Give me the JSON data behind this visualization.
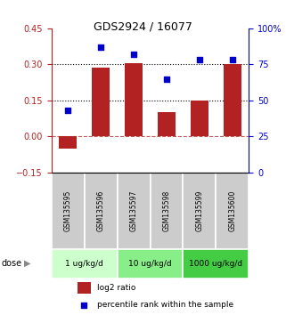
{
  "title": "GDS2924 / 16077",
  "samples": [
    "GSM135595",
    "GSM135596",
    "GSM135597",
    "GSM135598",
    "GSM135599",
    "GSM135600"
  ],
  "log2_ratio": [
    -0.05,
    0.285,
    0.305,
    0.1,
    0.15,
    0.3
  ],
  "percentile_rank": [
    43,
    87,
    82,
    65,
    78,
    78
  ],
  "bar_color": "#b22222",
  "scatter_color": "#0000cc",
  "left_ylim": [
    -0.15,
    0.45
  ],
  "right_ylim": [
    0,
    100
  ],
  "left_yticks": [
    -0.15,
    0,
    0.15,
    0.3,
    0.45
  ],
  "right_yticks": [
    0,
    25,
    50,
    75,
    100
  ],
  "right_yticklabels": [
    "0",
    "25",
    "50",
    "75",
    "100%"
  ],
  "hlines_dotted": [
    0.15,
    0.3
  ],
  "hline_dashed": 0,
  "dose_groups": [
    {
      "label": "1 ug/kg/d",
      "indices": [
        0,
        1
      ],
      "color": "#ccffcc"
    },
    {
      "label": "10 ug/kg/d",
      "indices": [
        2,
        3
      ],
      "color": "#88ee88"
    },
    {
      "label": "1000 ug/kg/d",
      "indices": [
        4,
        5
      ],
      "color": "#44cc44"
    }
  ],
  "dose_label": "dose",
  "legend_bar_label": "log2 ratio",
  "legend_scatter_label": "percentile rank within the sample",
  "sample_box_color": "#cccccc",
  "figure_bg": "#ffffff"
}
